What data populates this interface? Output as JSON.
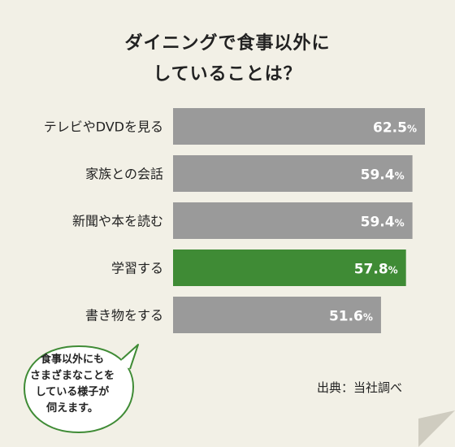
{
  "title": {
    "line1": "ダイニングで食事以外に",
    "line2": "していることは？"
  },
  "chart_data": {
    "type": "bar",
    "orientation": "horizontal",
    "categories": [
      "テレビやDVDを見る",
      "家族との会話",
      "新聞や本を読む",
      "学習する",
      "書き物をする"
    ],
    "values": [
      62.5,
      59.4,
      59.4,
      57.8,
      51.6
    ],
    "value_labels": [
      "62.5",
      "59.4",
      "59.4",
      "57.8",
      "51.6"
    ],
    "unit": "%",
    "highlight_index": 3,
    "colors": {
      "bar": "#9a9a9a",
      "highlight": "#3f8b35",
      "background": "#f2f0e6"
    }
  },
  "source": "出典：当社調べ",
  "bubble": {
    "lines": [
      "食事以外にも",
      "さまざまなことを",
      "している様子が",
      "伺えます。"
    ],
    "border_color": "#3f8b35"
  }
}
